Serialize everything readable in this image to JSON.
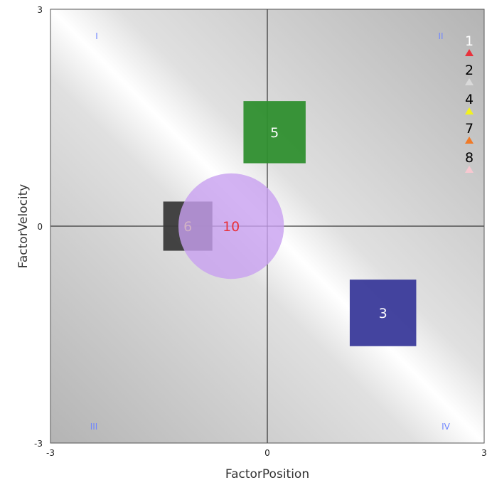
{
  "chart_data": {
    "type": "scatter",
    "xlabel": "FactorPosition",
    "ylabel": "FactorVelocity",
    "xlim": [
      -3,
      3
    ],
    "ylim": [
      -3,
      3
    ],
    "x_ticks": [
      "-3",
      "0",
      "3"
    ],
    "y_ticks": [
      "-3",
      "0",
      "3"
    ],
    "grid": false,
    "quadrant_labels": {
      "I": "I",
      "II": "II",
      "III": "III",
      "IV": "IV"
    },
    "legend_position": "top-right",
    "legend": [
      {
        "label": "1",
        "label_color": "#ffffff",
        "marker_color": "#e8323c"
      },
      {
        "label": "2",
        "label_color": "#000000",
        "marker_color": "#d9d9d9"
      },
      {
        "label": "4",
        "label_color": "#000000",
        "marker_color": "#f2f21e"
      },
      {
        "label": "7",
        "label_color": "#000000",
        "marker_color": "#f07a28"
      },
      {
        "label": "8",
        "label_color": "#000000",
        "marker_color": "#f7c8d0"
      }
    ],
    "points": [
      {
        "label": "5",
        "x": 0.1,
        "y": 1.3,
        "size": 0.86,
        "shape": "square",
        "color": "#2f8f2f",
        "opacity": 0.95,
        "label_color": "#ffffff"
      },
      {
        "label": "3",
        "x": 1.6,
        "y": -1.2,
        "size": 0.92,
        "shape": "square",
        "color": "#3a3a9a",
        "opacity": 0.95,
        "label_color": "#ffffff"
      },
      {
        "label": "6",
        "x": -1.1,
        "y": 0.0,
        "size": 0.68,
        "shape": "square",
        "color": "#3a3a3a",
        "opacity": 0.95,
        "label_color": "#f2f21e"
      },
      {
        "label": "10",
        "x": -0.5,
        "y": 0.0,
        "size": 1.46,
        "shape": "circle",
        "color": "#c8a0f0",
        "opacity": 0.8,
        "label_color": "#e8323c"
      }
    ]
  }
}
